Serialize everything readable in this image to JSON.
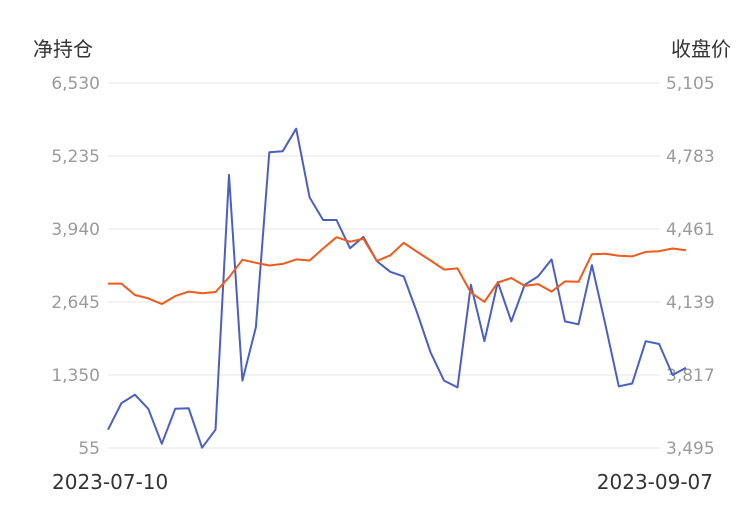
{
  "chart_data": {
    "type": "line",
    "left_axis_title": "净持仓",
    "right_axis_title": "收盘价",
    "left_ticks": [
      55,
      1350,
      2645,
      3940,
      5235,
      6530
    ],
    "left_tick_labels": [
      "55",
      "1,350",
      "2,645",
      "3,940",
      "5,235",
      "6,530"
    ],
    "right_ticks": [
      3495,
      3817,
      4139,
      4461,
      4783,
      5105
    ],
    "right_tick_labels": [
      "3,495",
      "3,817",
      "4,139",
      "4,461",
      "4,783",
      "5,105"
    ],
    "left_ylim": [
      55,
      6530
    ],
    "right_ylim": [
      3495,
      5105
    ],
    "grid": true,
    "x_start_label": "2023-07-10",
    "x_end_label": "2023-09-07",
    "series": [
      {
        "axis": "left",
        "color": "#4a5fc1",
        "values": [
          380,
          850,
          1000,
          750,
          130,
          750,
          760,
          60,
          380,
          4900,
          1250,
          2200,
          5300,
          5320,
          5720,
          4500,
          4100,
          4100,
          3600,
          3800,
          3370,
          3180,
          3100,
          2450,
          1750,
          1250,
          1130,
          2950,
          1950,
          3000,
          2300,
          2950,
          3100,
          3400,
          2300,
          2250,
          3300,
          2250,
          1150,
          1200,
          1950,
          1900,
          1350,
          1480
        ]
      },
      {
        "axis": "right",
        "color": "#f05a1a",
        "values": [
          4220,
          4220,
          4170,
          4155,
          4130,
          4165,
          4185,
          4178,
          4183,
          4248,
          4325,
          4312,
          4300,
          4307,
          4327,
          4322,
          4375,
          4425,
          4405,
          4418,
          4320,
          4345,
          4400,
          4360,
          4322,
          4282,
          4287,
          4180,
          4140,
          4225,
          4245,
          4210,
          4218,
          4185,
          4230,
          4228,
          4350,
          4352,
          4343,
          4340,
          4360,
          4363,
          4375,
          4367
        ]
      }
    ]
  }
}
